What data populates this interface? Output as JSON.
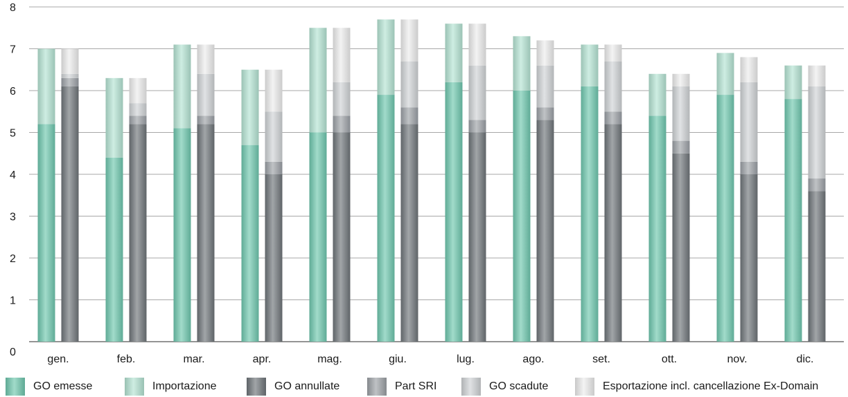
{
  "chart_data": {
    "type": "bar",
    "ylim": [
      0,
      8
    ],
    "yticks": [
      "0",
      "1",
      "2",
      "3",
      "4",
      "5",
      "6",
      "7",
      "8"
    ],
    "grid": true,
    "legend_position": "bottom",
    "categories": [
      "gen.",
      "feb.",
      "mar.",
      "apr.",
      "mag.",
      "giu.",
      "lug.",
      "ago.",
      "set.",
      "ott.",
      "nov.",
      "dic."
    ],
    "stacks": [
      {
        "stack": "left",
        "series": [
          {
            "name": "GO emesse",
            "color": "#6fc7ae",
            "values": [
              5.2,
              4.4,
              5.1,
              4.7,
              5.0,
              5.9,
              6.2,
              6.0,
              6.1,
              5.4,
              5.9,
              5.8
            ]
          },
          {
            "name": "Importazione",
            "color": "#b4e3d3",
            "values": [
              1.8,
              1.9,
              2.0,
              1.8,
              2.5,
              1.8,
              1.4,
              1.3,
              1.0,
              1.0,
              1.0,
              0.8
            ]
          }
        ]
      },
      {
        "stack": "right",
        "series": [
          {
            "name": "GO annullate",
            "color": "#6f7479",
            "values": [
              6.1,
              5.2,
              5.2,
              4.0,
              5.0,
              5.2,
              5.0,
              5.3,
              5.2,
              4.5,
              4.0,
              3.6
            ]
          },
          {
            "name": "Part SRI",
            "color": "#9ca1a6",
            "values": [
              0.2,
              0.2,
              0.2,
              0.3,
              0.4,
              0.4,
              0.3,
              0.3,
              0.3,
              0.3,
              0.3,
              0.3
            ]
          },
          {
            "name": "GO scadute",
            "color": "#cfd2d5",
            "values": [
              0.1,
              0.3,
              1.0,
              1.2,
              0.8,
              1.1,
              1.3,
              1.0,
              1.2,
              1.3,
              1.9,
              2.2
            ]
          },
          {
            "name": "Esportazione incl. cancellazione Ex-Domain",
            "color": "#ececec",
            "values": [
              0.6,
              0.6,
              0.7,
              1.0,
              1.3,
              1.0,
              1.0,
              0.6,
              0.4,
              0.3,
              0.6,
              0.5
            ]
          }
        ]
      }
    ]
  },
  "legend": [
    {
      "label": "GO emesse",
      "color": "#6fc7ae",
      "icon": "teal-swatch"
    },
    {
      "label": "Importazione",
      "color": "#b4e3d3",
      "icon": "light-teal-swatch"
    },
    {
      "label": "GO annullate",
      "color": "#6f7479",
      "icon": "dark-grey-swatch"
    },
    {
      "label": "Part SRI",
      "color": "#9ca1a6",
      "icon": "mid-grey-swatch"
    },
    {
      "label": "GO scadute",
      "color": "#cfd2d5",
      "icon": "light-grey-swatch"
    },
    {
      "label": "Esportazione incl. cancellazione Ex-Domain",
      "color": "#ececec",
      "icon": "lightest-grey-swatch"
    }
  ]
}
